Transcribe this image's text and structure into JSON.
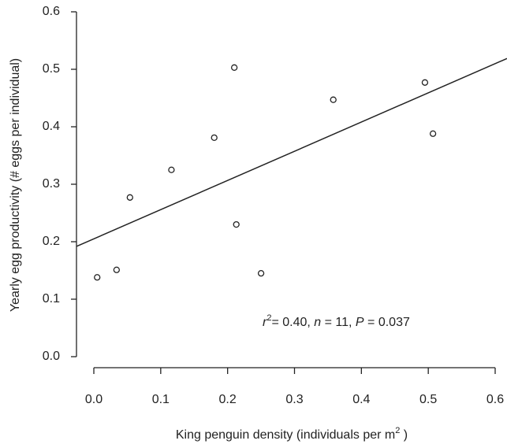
{
  "chart_data": {
    "type": "scatter",
    "x_label": [
      "King penguin density (individuals per m",
      "2",
      " )"
    ],
    "y_label": "Yearly egg productivity (# eggs per individual)",
    "annotation": [
      "r",
      "2",
      "= 0.40, ",
      "n",
      " = 11, ",
      "P",
      " = 0.037"
    ],
    "x": [
      0.005,
      0.034,
      0.054,
      0.116,
      0.18,
      0.21,
      0.213,
      0.25,
      0.358,
      0.495,
      0.507
    ],
    "values": [
      0.138,
      0.151,
      0.277,
      0.325,
      0.381,
      0.503,
      0.23,
      0.145,
      0.447,
      0.477,
      0.388
    ],
    "color": "#222222",
    "fit": {
      "intercept": 0.205,
      "slope": 0.508
    },
    "xlim": [
      0,
      0.6
    ],
    "xticks": [
      {
        "value": 0,
        "label": "0.0"
      },
      0.1,
      0.2,
      0.3,
      0.4,
      0.5,
      0.6
    ],
    "ylim": [
      0,
      0.6
    ],
    "yticks": [
      {
        "value": 0,
        "label": "0.0"
      },
      0.1,
      0.2,
      0.3,
      0.4,
      0.5,
      0.6
    ]
  }
}
